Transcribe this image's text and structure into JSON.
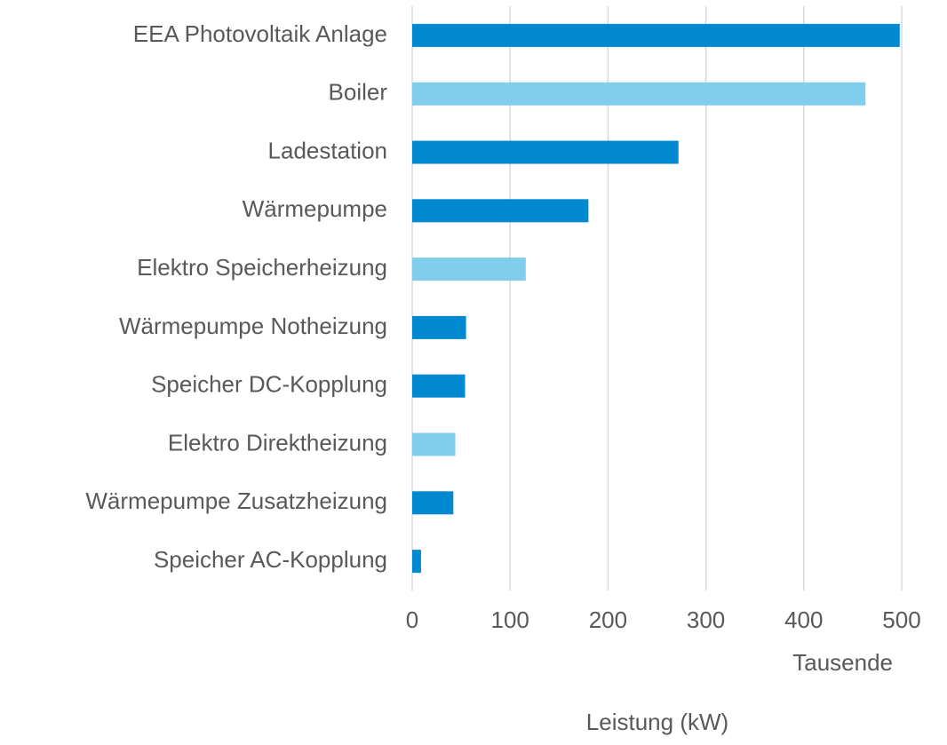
{
  "chart_data": {
    "type": "bar",
    "orientation": "horizontal",
    "categories": [
      "EEA Photovoltaik Anlage",
      "Boiler",
      "Ladestation",
      "Wärmepumpe",
      "Elektro Speicherheizung",
      "Wärmepumpe Notheizung",
      "Speicher DC-Kopplung",
      "Elektro Direktheizung",
      "Wärmepumpe Zusatzheizung",
      "Speicher AC-Kopplung"
    ],
    "values": [
      498,
      463,
      272,
      180,
      116,
      55,
      54,
      44,
      42,
      9
    ],
    "colors": [
      "#0088d1",
      "#80cdee",
      "#0088d1",
      "#0088d1",
      "#80cdee",
      "#0088d1",
      "#0088d1",
      "#80cdee",
      "#0088d1",
      "#0088d1"
    ],
    "xlim": [
      0,
      500
    ],
    "xticks": [
      0,
      100,
      200,
      300,
      400,
      500
    ],
    "grid": true,
    "display_unit": "Tausende",
    "xlabel": "Leistung (kW)"
  }
}
